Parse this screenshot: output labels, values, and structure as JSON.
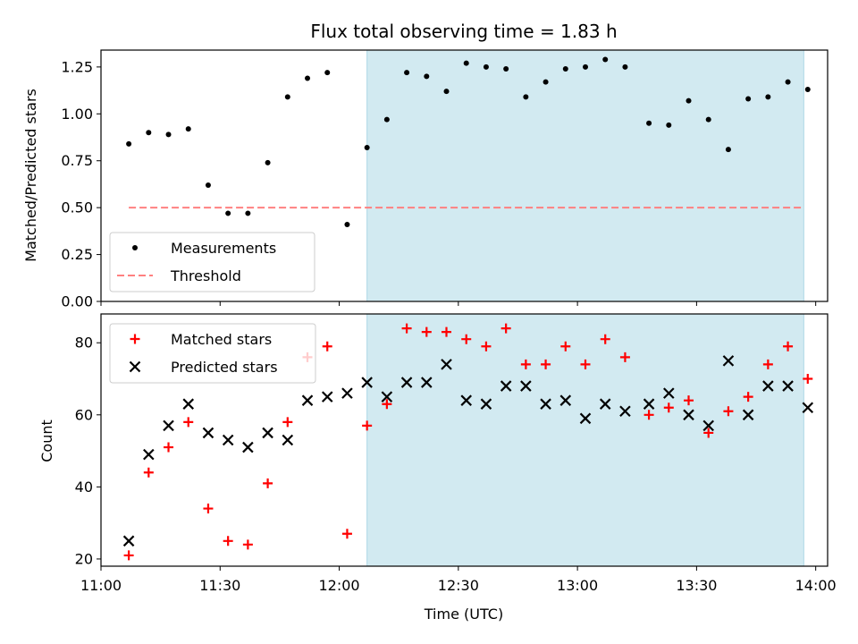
{
  "chart_data": [
    {
      "type": "scatter",
      "title": "Flux total observing time = 1.83 h",
      "xlabel": "",
      "ylabel": "Matched/Predicted stars",
      "xlim": [
        "11:00",
        "14:03"
      ],
      "ylim": [
        0,
        1.34
      ],
      "yticks": [
        "0.00",
        "0.25",
        "0.50",
        "0.75",
        "1.00",
        "1.25"
      ],
      "grid": false,
      "legend_position": "lower-left",
      "shaded_x_range": [
        "12:07",
        "13:57"
      ],
      "shade_color": "#add8e6",
      "series": [
        {
          "name": "Measurements",
          "marker": "dot",
          "color": "#000000",
          "points": [
            {
              "x": "11:07",
              "y": 0.84
            },
            {
              "x": "11:12",
              "y": 0.9
            },
            {
              "x": "11:17",
              "y": 0.89
            },
            {
              "x": "11:22",
              "y": 0.92
            },
            {
              "x": "11:27",
              "y": 0.62
            },
            {
              "x": "11:32",
              "y": 0.47
            },
            {
              "x": "11:37",
              "y": 0.47
            },
            {
              "x": "11:42",
              "y": 0.74
            },
            {
              "x": "11:47",
              "y": 1.09
            },
            {
              "x": "11:52",
              "y": 1.19
            },
            {
              "x": "11:57",
              "y": 1.22
            },
            {
              "x": "12:02",
              "y": 0.41
            },
            {
              "x": "12:07",
              "y": 0.82
            },
            {
              "x": "12:12",
              "y": 0.97
            },
            {
              "x": "12:17",
              "y": 1.22
            },
            {
              "x": "12:22",
              "y": 1.2
            },
            {
              "x": "12:27",
              "y": 1.12
            },
            {
              "x": "12:32",
              "y": 1.27
            },
            {
              "x": "12:37",
              "y": 1.25
            },
            {
              "x": "12:42",
              "y": 1.24
            },
            {
              "x": "12:47",
              "y": 1.09
            },
            {
              "x": "12:52",
              "y": 1.17
            },
            {
              "x": "12:57",
              "y": 1.24
            },
            {
              "x": "13:02",
              "y": 1.25
            },
            {
              "x": "13:07",
              "y": 1.29
            },
            {
              "x": "13:12",
              "y": 1.25
            },
            {
              "x": "13:18",
              "y": 0.95
            },
            {
              "x": "13:23",
              "y": 0.94
            },
            {
              "x": "13:28",
              "y": 1.07
            },
            {
              "x": "13:33",
              "y": 0.97
            },
            {
              "x": "13:38",
              "y": 0.81
            },
            {
              "x": "13:43",
              "y": 1.08
            },
            {
              "x": "13:48",
              "y": 1.09
            },
            {
              "x": "13:53",
              "y": 1.17
            },
            {
              "x": "13:58",
              "y": 1.13
            }
          ]
        },
        {
          "name": "Threshold",
          "style": "dashed-line",
          "color": "#ff8080",
          "x_start": "11:07",
          "x_end": "13:57",
          "y": 0.5
        }
      ]
    },
    {
      "type": "scatter",
      "title": "",
      "xlabel": "Time (UTC)",
      "ylabel": "Count",
      "xlim": [
        "11:00",
        "14:03"
      ],
      "ylim": [
        18,
        88
      ],
      "xticks": [
        "11:00",
        "11:30",
        "12:00",
        "12:30",
        "13:00",
        "13:30",
        "14:00"
      ],
      "yticks": [
        "20",
        "40",
        "60",
        "80"
      ],
      "grid": false,
      "legend_position": "top-left",
      "shaded_x_range": [
        "12:07",
        "13:57"
      ],
      "shade_color": "#add8e6",
      "series": [
        {
          "name": "Matched stars",
          "marker": "plus",
          "color": "#ff0000",
          "points": [
            {
              "x": "11:07",
              "y": 21
            },
            {
              "x": "11:12",
              "y": 44
            },
            {
              "x": "11:17",
              "y": 51
            },
            {
              "x": "11:22",
              "y": 58
            },
            {
              "x": "11:27",
              "y": 34
            },
            {
              "x": "11:32",
              "y": 25
            },
            {
              "x": "11:37",
              "y": 24
            },
            {
              "x": "11:42",
              "y": 41
            },
            {
              "x": "11:47",
              "y": 58
            },
            {
              "x": "11:52",
              "y": 76
            },
            {
              "x": "11:57",
              "y": 79
            },
            {
              "x": "12:02",
              "y": 27
            },
            {
              "x": "12:07",
              "y": 57
            },
            {
              "x": "12:12",
              "y": 63
            },
            {
              "x": "12:17",
              "y": 84
            },
            {
              "x": "12:22",
              "y": 83
            },
            {
              "x": "12:27",
              "y": 83
            },
            {
              "x": "12:32",
              "y": 81
            },
            {
              "x": "12:37",
              "y": 79
            },
            {
              "x": "12:42",
              "y": 84
            },
            {
              "x": "12:47",
              "y": 74
            },
            {
              "x": "12:52",
              "y": 74
            },
            {
              "x": "12:57",
              "y": 79
            },
            {
              "x": "13:02",
              "y": 74
            },
            {
              "x": "13:07",
              "y": 81
            },
            {
              "x": "13:12",
              "y": 76
            },
            {
              "x": "13:18",
              "y": 60
            },
            {
              "x": "13:23",
              "y": 62
            },
            {
              "x": "13:28",
              "y": 64
            },
            {
              "x": "13:33",
              "y": 55
            },
            {
              "x": "13:38",
              "y": 61
            },
            {
              "x": "13:43",
              "y": 65
            },
            {
              "x": "13:48",
              "y": 74
            },
            {
              "x": "13:53",
              "y": 79
            },
            {
              "x": "13:58",
              "y": 70
            }
          ]
        },
        {
          "name": "Predicted stars",
          "marker": "x",
          "color": "#000000",
          "points": [
            {
              "x": "11:07",
              "y": 25
            },
            {
              "x": "11:12",
              "y": 49
            },
            {
              "x": "11:17",
              "y": 57
            },
            {
              "x": "11:22",
              "y": 63
            },
            {
              "x": "11:27",
              "y": 55
            },
            {
              "x": "11:32",
              "y": 53
            },
            {
              "x": "11:37",
              "y": 51
            },
            {
              "x": "11:42",
              "y": 55
            },
            {
              "x": "11:47",
              "y": 53
            },
            {
              "x": "11:52",
              "y": 64
            },
            {
              "x": "11:57",
              "y": 65
            },
            {
              "x": "12:02",
              "y": 66
            },
            {
              "x": "12:07",
              "y": 69
            },
            {
              "x": "12:12",
              "y": 65
            },
            {
              "x": "12:17",
              "y": 69
            },
            {
              "x": "12:22",
              "y": 69
            },
            {
              "x": "12:27",
              "y": 74
            },
            {
              "x": "12:32",
              "y": 64
            },
            {
              "x": "12:37",
              "y": 63
            },
            {
              "x": "12:42",
              "y": 68
            },
            {
              "x": "12:47",
              "y": 68
            },
            {
              "x": "12:52",
              "y": 63
            },
            {
              "x": "12:57",
              "y": 64
            },
            {
              "x": "13:02",
              "y": 59
            },
            {
              "x": "13:07",
              "y": 63
            },
            {
              "x": "13:12",
              "y": 61
            },
            {
              "x": "13:18",
              "y": 63
            },
            {
              "x": "13:23",
              "y": 66
            },
            {
              "x": "13:28",
              "y": 60
            },
            {
              "x": "13:33",
              "y": 57
            },
            {
              "x": "13:38",
              "y": 75
            },
            {
              "x": "13:43",
              "y": 60
            },
            {
              "x": "13:48",
              "y": 68
            },
            {
              "x": "13:53",
              "y": 68
            },
            {
              "x": "13:58",
              "y": 62
            }
          ]
        }
      ]
    }
  ]
}
